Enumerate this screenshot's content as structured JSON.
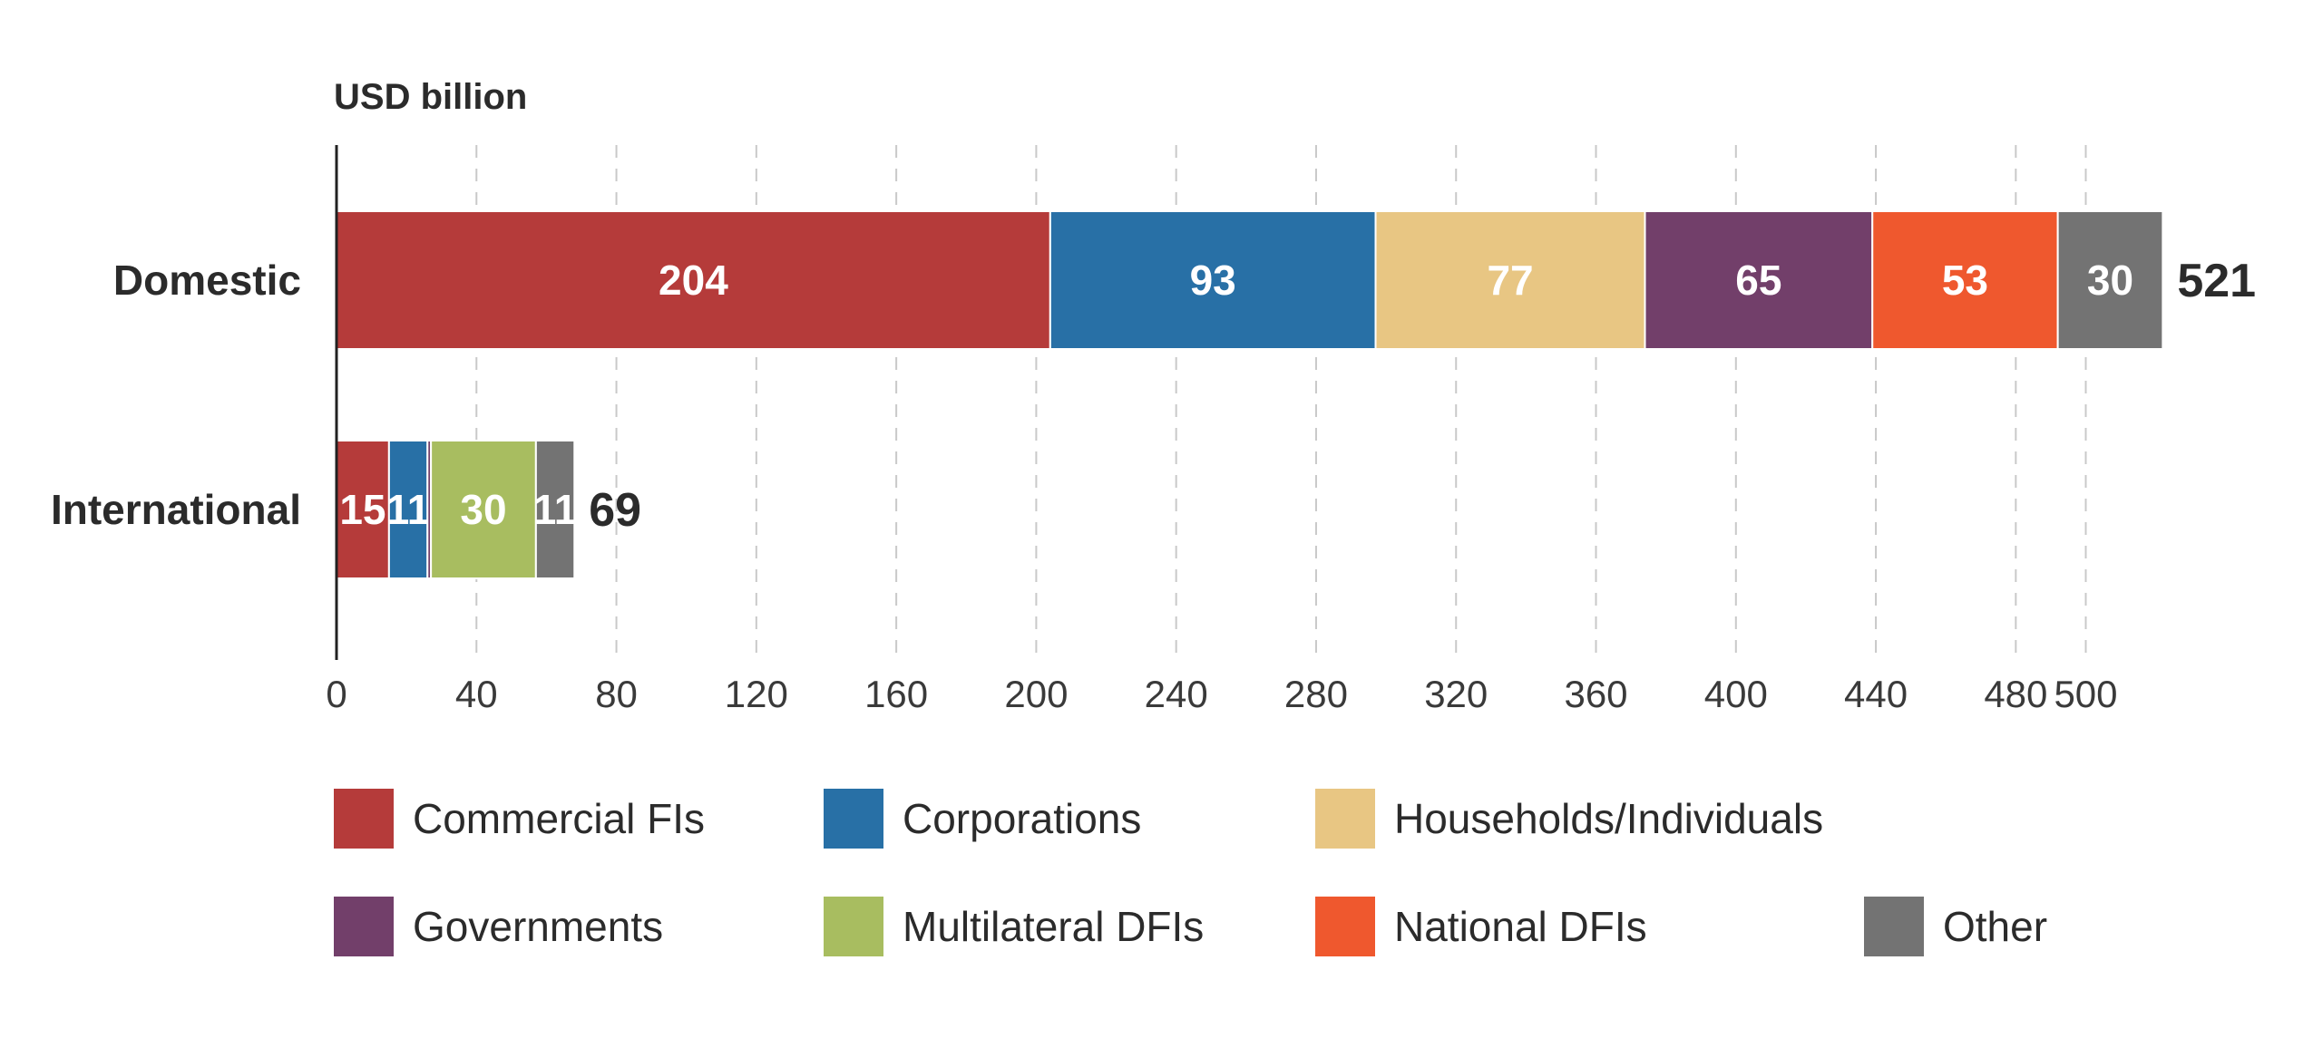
{
  "chart_data": {
    "type": "bar",
    "orientation": "horizontal",
    "stacked": true,
    "unit_label": "USD billion",
    "categories": [
      "Domestic",
      "International"
    ],
    "series": [
      {
        "name": "Commercial FIs",
        "color": "#b53b3a",
        "values": [
          204,
          15
        ],
        "labels": [
          "204",
          "15"
        ]
      },
      {
        "name": "Corporations",
        "color": "#2870a6",
        "values": [
          93,
          11
        ],
        "labels": [
          "93",
          "11"
        ]
      },
      {
        "name": "Households/Individuals",
        "color": "#e8c683",
        "values": [
          77,
          0
        ],
        "labels": [
          "77",
          ""
        ]
      },
      {
        "name": "Governments",
        "color": "#723f6a",
        "values": [
          65,
          1
        ],
        "labels": [
          "65",
          ""
        ]
      },
      {
        "name": "Multilateral DFIs",
        "color": "#a8bd60",
        "values": [
          0,
          30
        ],
        "labels": [
          "",
          "30"
        ]
      },
      {
        "name": "National DFIs",
        "color": "#ef582e",
        "values": [
          53,
          0
        ],
        "labels": [
          "53",
          ""
        ]
      },
      {
        "name": "Other",
        "color": "#737373",
        "values": [
          30,
          11
        ],
        "labels": [
          "30",
          "11"
        ]
      }
    ],
    "totals": [
      "521",
      "69"
    ],
    "xticks": [
      0,
      40,
      80,
      120,
      160,
      200,
      240,
      280,
      320,
      360,
      400,
      440,
      480,
      500
    ],
    "xlim": [
      0,
      520
    ],
    "grid": true,
    "legend_position": "bottom",
    "legend_rows": [
      [
        "Commercial FIs",
        "Corporations",
        "Households/Individuals"
      ],
      [
        "Governments",
        "Multilateral DFIs",
        "National DFIs",
        "Other"
      ]
    ]
  }
}
